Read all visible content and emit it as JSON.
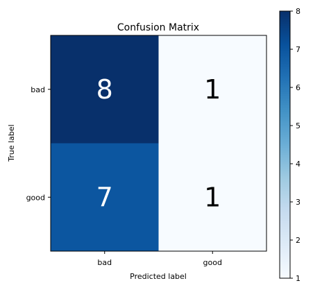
{
  "chart_data": {
    "type": "heatmap",
    "title": "Confusion Matrix",
    "xlabel": "Predicted label",
    "ylabel": "True label",
    "x_categories": [
      "bad",
      "good"
    ],
    "y_categories": [
      "bad",
      "good"
    ],
    "matrix": [
      [
        8,
        1
      ],
      [
        7,
        1
      ]
    ],
    "colormap": "Blues",
    "color_low": "#f7fbff",
    "color_high": "#08306b",
    "text_color_dark": "#000000",
    "text_color_light": "#ffffff",
    "colorbar": {
      "min": 1,
      "max": 8,
      "ticks": [
        1,
        2,
        3,
        4,
        5,
        6,
        7,
        8
      ]
    },
    "grid": false
  }
}
